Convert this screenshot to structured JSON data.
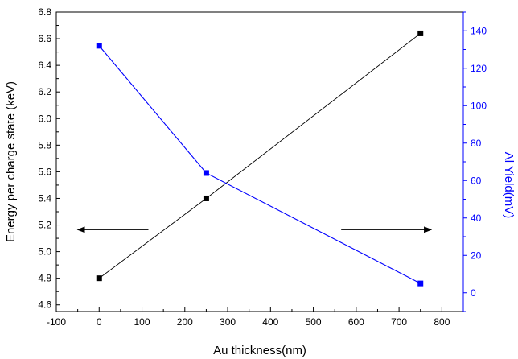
{
  "chart_data": {
    "type": "line",
    "x_axis": {
      "label": "Au thickness(nm)",
      "range": [
        -100,
        850
      ],
      "ticks": [
        -100,
        0,
        100,
        200,
        300,
        400,
        500,
        600,
        700,
        800
      ],
      "tick_labels": [
        "-100",
        "0",
        "100",
        "200",
        "300",
        "400",
        "500",
        "600",
        "700",
        "800"
      ]
    },
    "y_axis_left": {
      "label": "Energy per charge state (keV)",
      "range": [
        4.55,
        6.8
      ],
      "ticks": [
        4.6,
        4.8,
        5.0,
        5.2,
        5.4,
        5.6,
        5.8,
        6.0,
        6.2,
        6.4,
        6.6,
        6.8
      ],
      "tick_labels": [
        "4.6",
        "4.8",
        "5.0",
        "5.2",
        "5.4",
        "5.6",
        "5.8",
        "6.0",
        "6.2",
        "6.4",
        "6.6",
        "6.8"
      ],
      "color": "#000000"
    },
    "y_axis_right": {
      "label": "Al Yield(mV)",
      "range": [
        -10,
        150
      ],
      "ticks": [
        0,
        20,
        40,
        60,
        80,
        100,
        120,
        140
      ],
      "tick_labels": [
        "0",
        "20",
        "40",
        "60",
        "80",
        "100",
        "120",
        "140"
      ],
      "color": "#0000ff"
    },
    "series": [
      {
        "axis": "left",
        "color": "#000000",
        "marker": "square",
        "x": [
          0,
          250,
          750
        ],
        "y": [
          4.8,
          5.4,
          6.64
        ]
      },
      {
        "axis": "right",
        "color": "#0000ff",
        "marker": "square",
        "x": [
          0,
          250,
          750
        ],
        "y": [
          132,
          64,
          5
        ]
      }
    ],
    "annotations": [
      {
        "type": "arrow",
        "direction": "left",
        "points_to_axis": "left",
        "from": [
          115,
          5.165
        ],
        "to": [
          -50,
          5.165
        ]
      },
      {
        "type": "arrow",
        "direction": "right",
        "points_to_axis": "right",
        "from": [
          565,
          5.165
        ],
        "to": [
          775,
          5.165
        ]
      }
    ],
    "grid": false,
    "legend": "none"
  }
}
